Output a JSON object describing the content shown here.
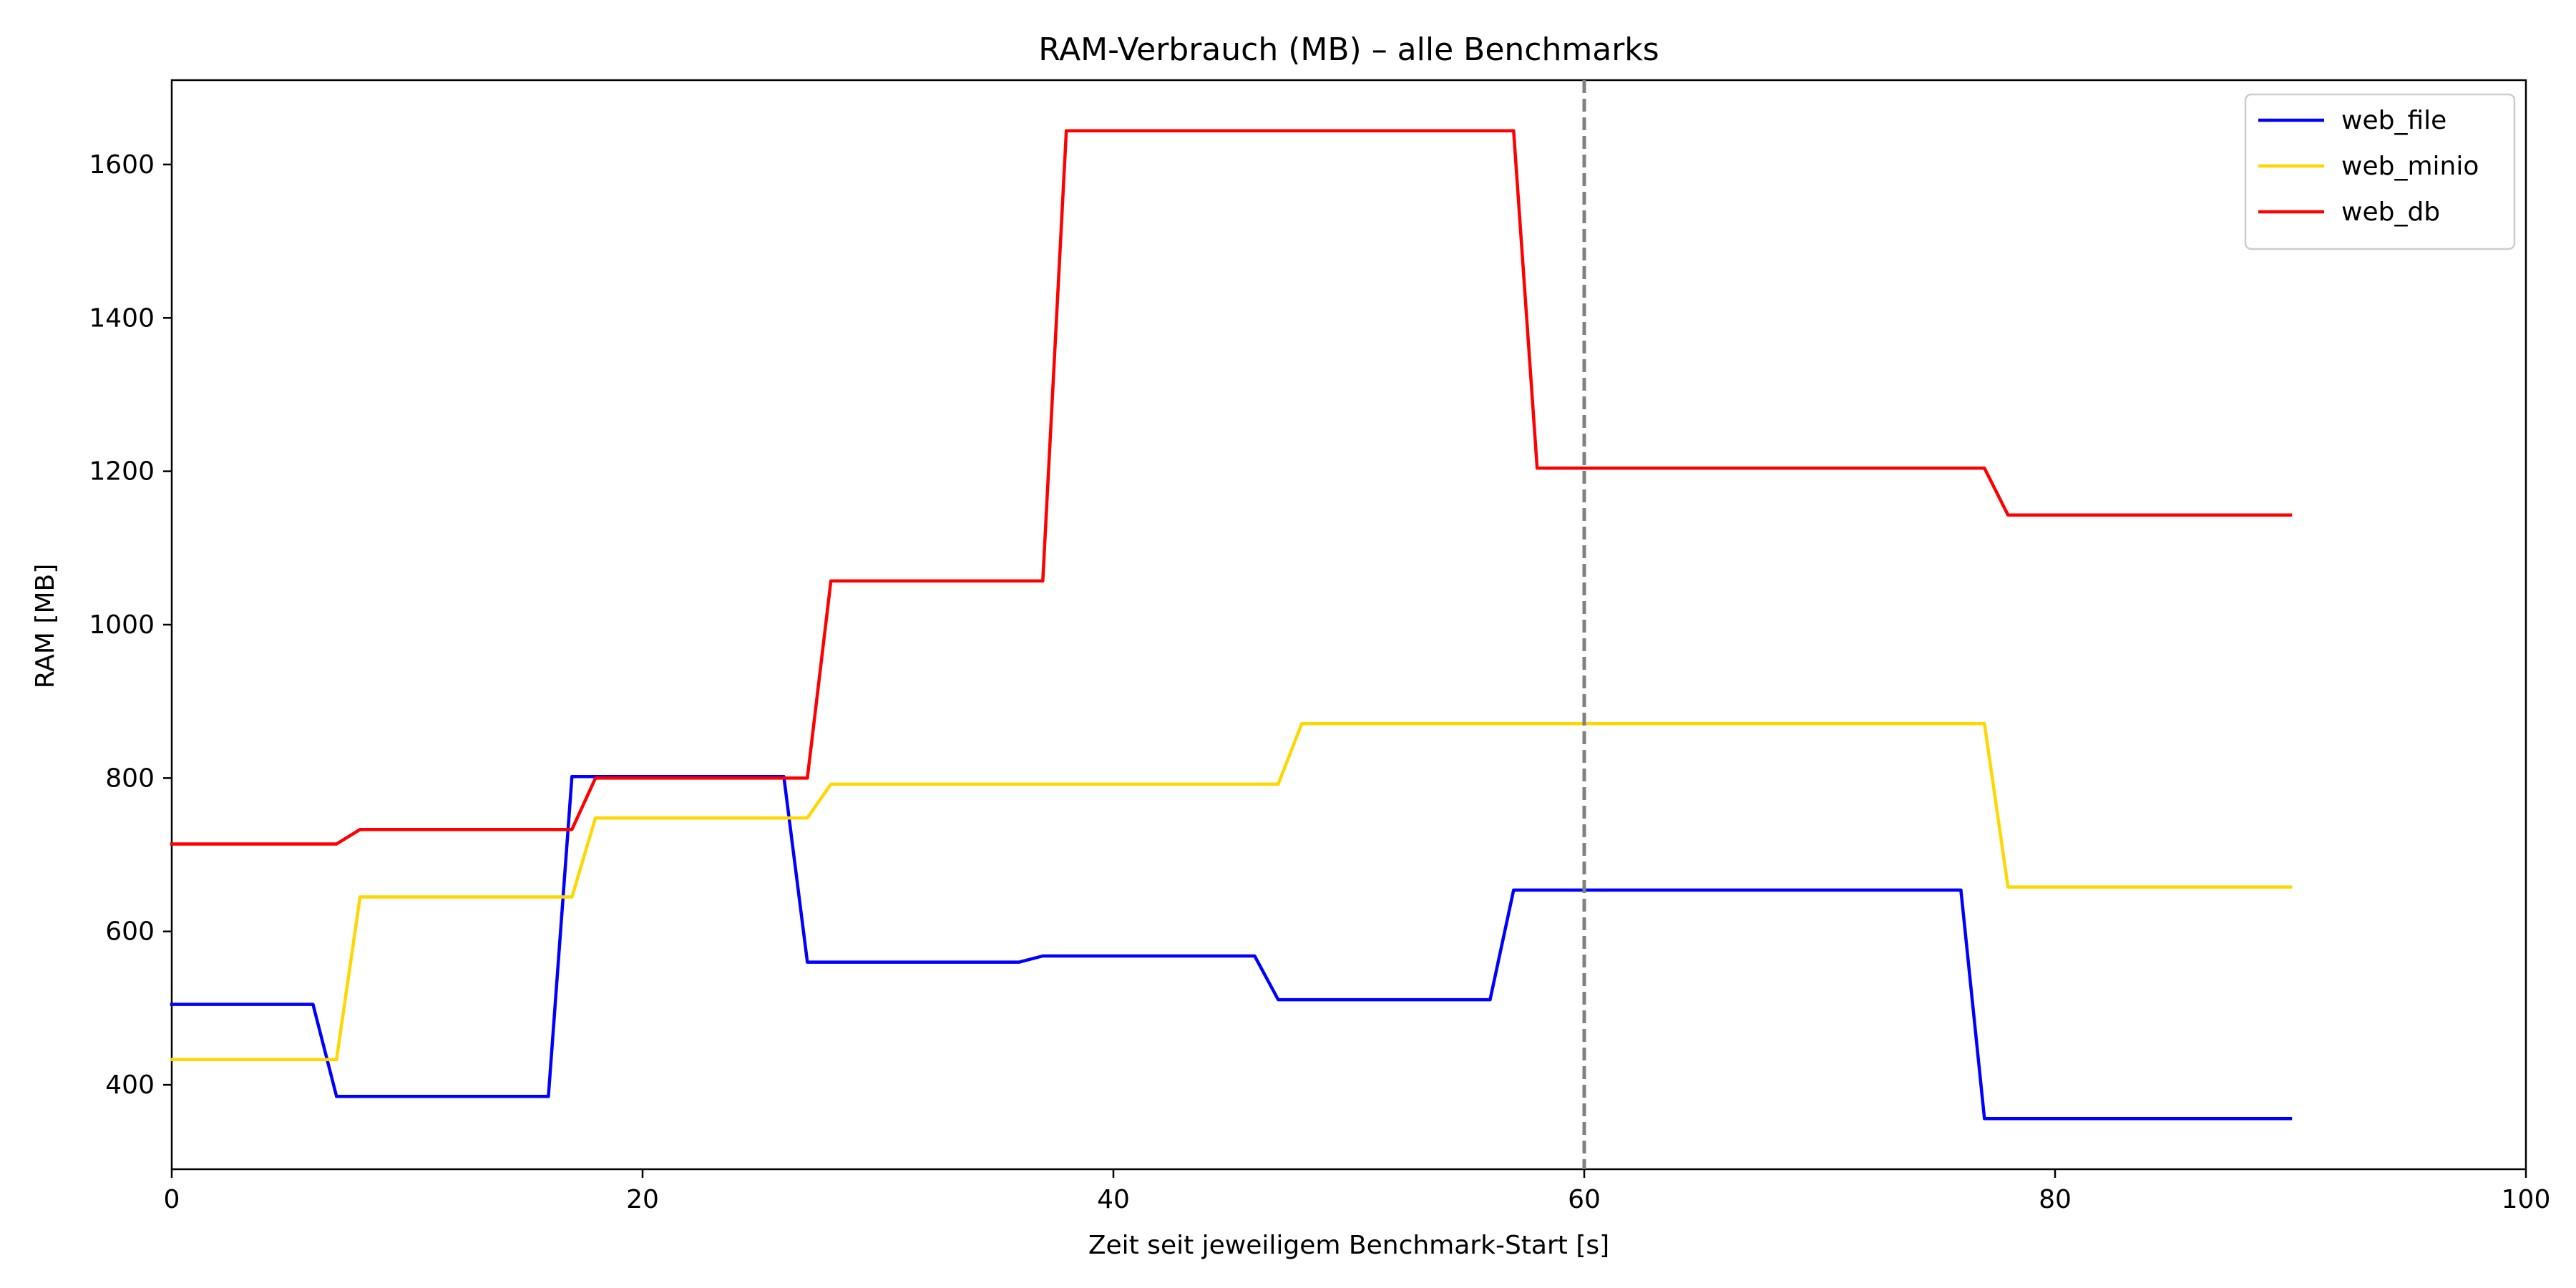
{
  "chart_data": {
    "type": "line",
    "title": "RAM-Verbrauch (MB) – alle Benchmarks",
    "xlabel": "Zeit seit jeweiligem Benchmark-Start [s]",
    "ylabel": "RAM [MB]",
    "xlim": [
      0,
      100
    ],
    "ylim": [
      290,
      1710
    ],
    "xticks": [
      0,
      20,
      40,
      60,
      80,
      100
    ],
    "yticks": [
      400,
      600,
      800,
      1000,
      1200,
      1400,
      1600
    ],
    "grid": false,
    "legend_position": "top-right",
    "reference_lines": [
      {
        "axis": "x",
        "value": 60,
        "style": "dashed",
        "color": "#808080"
      }
    ],
    "series": [
      {
        "name": "web_file",
        "color": "#0000ff",
        "x": [
          0,
          6,
          7,
          16,
          17,
          26,
          27,
          36,
          37,
          46,
          47,
          56,
          57,
          76,
          77,
          90
        ],
        "y": [
          505,
          505,
          385,
          385,
          802,
          802,
          560,
          560,
          568,
          568,
          511,
          511,
          654,
          654,
          356,
          356
        ]
      },
      {
        "name": "web_minio",
        "color": "#ffd700",
        "x": [
          0,
          7,
          8,
          17,
          18,
          27,
          28,
          47,
          48,
          77,
          78,
          90
        ],
        "y": [
          433,
          433,
          645,
          645,
          748,
          748,
          792,
          792,
          871,
          871,
          658,
          658
        ]
      },
      {
        "name": "web_db",
        "color": "#ff0000",
        "x": [
          0,
          7,
          8,
          17,
          18,
          27,
          28,
          37,
          38,
          57,
          58,
          77,
          78,
          90
        ],
        "y": [
          714,
          714,
          733,
          733,
          800,
          800,
          1057,
          1057,
          1644,
          1644,
          1204,
          1204,
          1143,
          1143
        ]
      }
    ]
  }
}
